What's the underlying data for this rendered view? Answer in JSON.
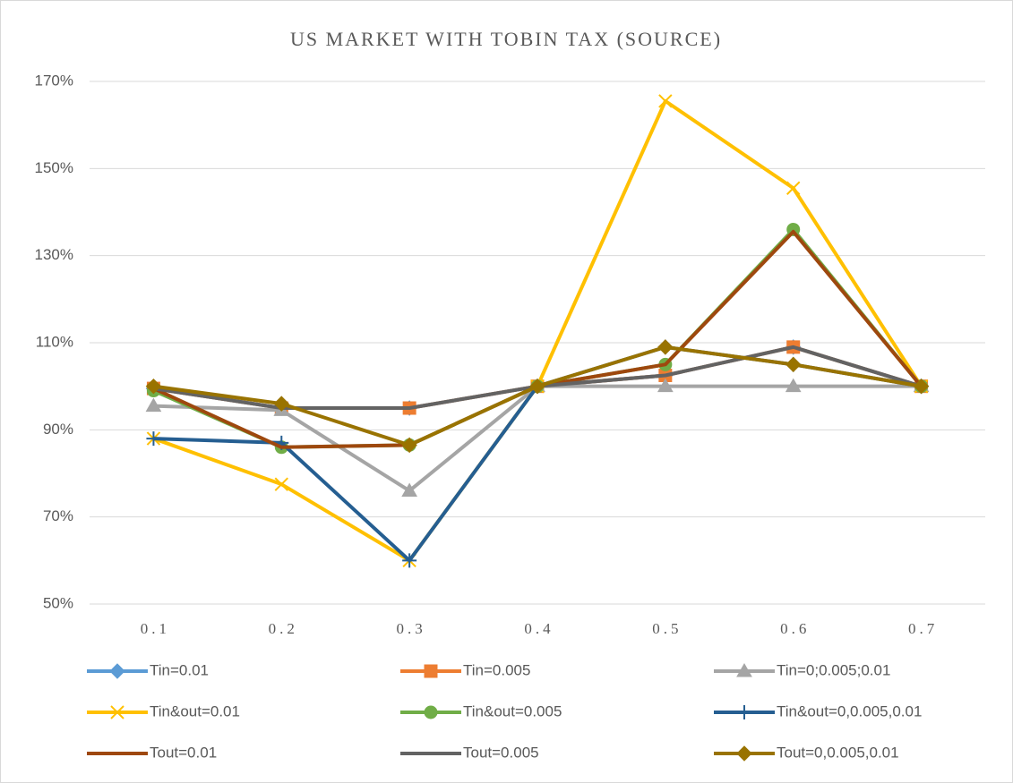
{
  "chart_data": {
    "type": "line",
    "title": "US MARKET WITH TOBIN TAX (SOURCE)",
    "categories": [
      "0.1",
      "0.2",
      "0.3",
      "0.4",
      "0.5",
      "0.6",
      "0.7"
    ],
    "ylim": [
      50,
      170
    ],
    "yticks": [
      {
        "value": 50,
        "label": "50%"
      },
      {
        "value": 70,
        "label": "70%"
      },
      {
        "value": 90,
        "label": "90%"
      },
      {
        "value": 110,
        "label": "110%"
      },
      {
        "value": 130,
        "label": "130%"
      },
      {
        "value": 150,
        "label": "150%"
      },
      {
        "value": 170,
        "label": "170%"
      }
    ],
    "grid": true,
    "legend": "bottom",
    "series": [
      {
        "name": "Tin=0.01",
        "color": "#5b9bd5",
        "marker": "diamond",
        "values": [
          99.5,
          95,
          95,
          100,
          102.5,
          109,
          100
        ]
      },
      {
        "name": "Tin=0.005",
        "color": "#ed7d31",
        "marker": "square",
        "values": [
          99.5,
          95,
          95,
          100,
          102.5,
          109,
          100
        ]
      },
      {
        "name": "Tin=0;0.005;0.01",
        "color": "#a5a5a5",
        "marker": "triangle",
        "values": [
          95.5,
          94.5,
          76,
          100,
          100,
          100,
          100
        ]
      },
      {
        "name": "Tin&out=0.01",
        "color": "#ffc000",
        "marker": "x",
        "values": [
          88,
          77.5,
          60,
          100,
          165.5,
          145.5,
          100
        ]
      },
      {
        "name": "Tin&out=0.005",
        "color": "#70ad47",
        "marker": "circle",
        "values": [
          99,
          86,
          86.5,
          100,
          105,
          136,
          100
        ]
      },
      {
        "name": "Tin&out=0,0.005,0.01",
        "color": "#255e91",
        "marker": "plus",
        "values": [
          88,
          87,
          60,
          100,
          109,
          105,
          100
        ]
      },
      {
        "name": "Tout=0.01",
        "color": "#9e480e",
        "marker": "none",
        "values": [
          99.5,
          86,
          86.5,
          100,
          105,
          135.5,
          100
        ]
      },
      {
        "name": "Tout=0.005",
        "color": "#636363",
        "marker": "none",
        "values": [
          99.5,
          95,
          95,
          100,
          102.5,
          109,
          100
        ]
      },
      {
        "name": "Tout=0,0.005,0.01",
        "color": "#997300",
        "marker": "diamond",
        "values": [
          100,
          96,
          86.5,
          100,
          109,
          105,
          100
        ]
      }
    ]
  }
}
